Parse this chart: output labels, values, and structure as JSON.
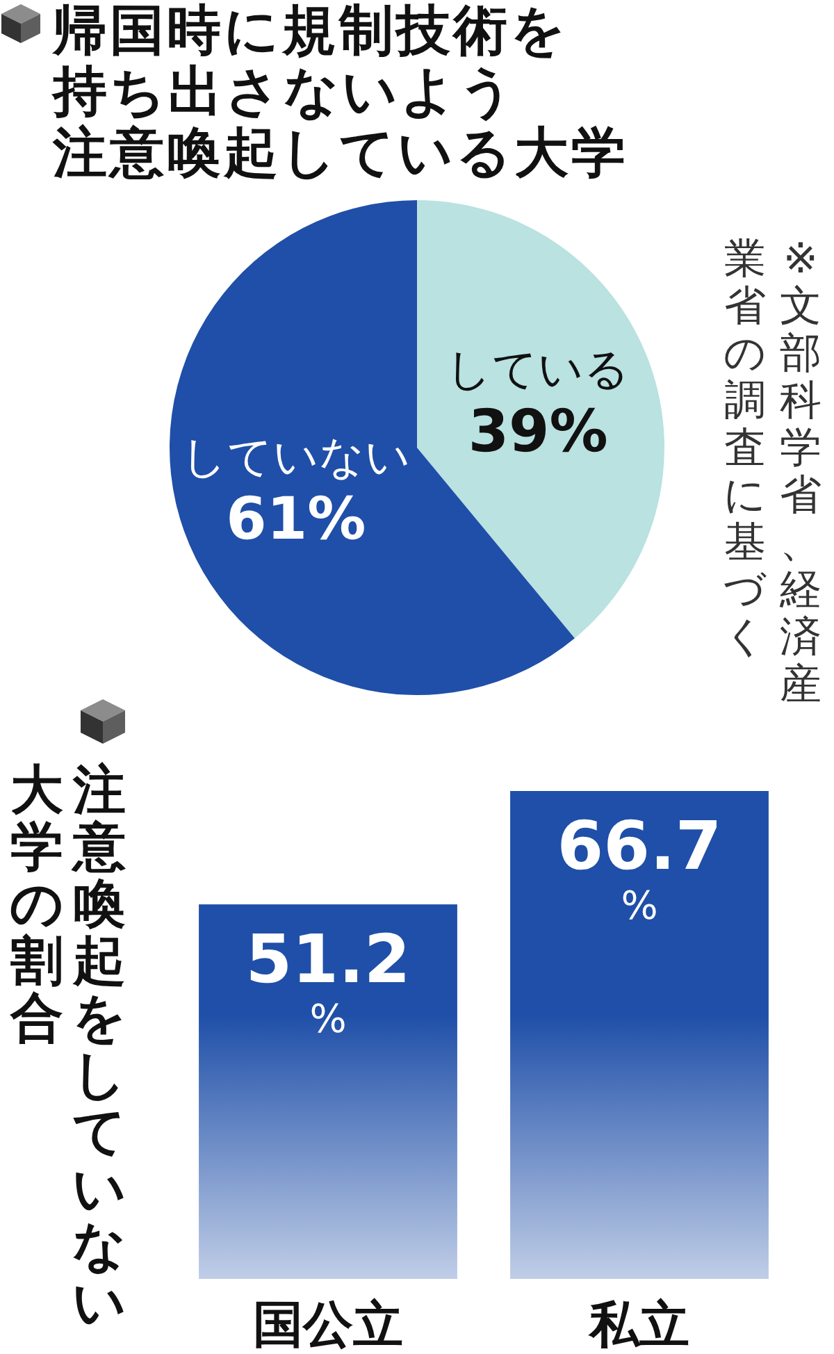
{
  "chart_data": [
    {
      "type": "pie",
      "title": "帰国時に規制技術を持ち出さないよう注意喚起している大学",
      "categories": [
        "している",
        "していない"
      ],
      "values": [
        39,
        61
      ],
      "colors": [
        "#b9e2e1",
        "#1f4fa8"
      ],
      "value_labels": [
        "39%",
        "61%"
      ],
      "annotations": [
        "※文部科学省、経済産業省の調査に基づく"
      ]
    },
    {
      "type": "bar",
      "title": "注意喚起をしていない大学の割合",
      "categories": [
        "国公立",
        "私立"
      ],
      "values": [
        51.2,
        66.7
      ],
      "color": "#1f4fa8",
      "value_labels": [
        "51.2%",
        "66.7%"
      ]
    }
  ]
}
